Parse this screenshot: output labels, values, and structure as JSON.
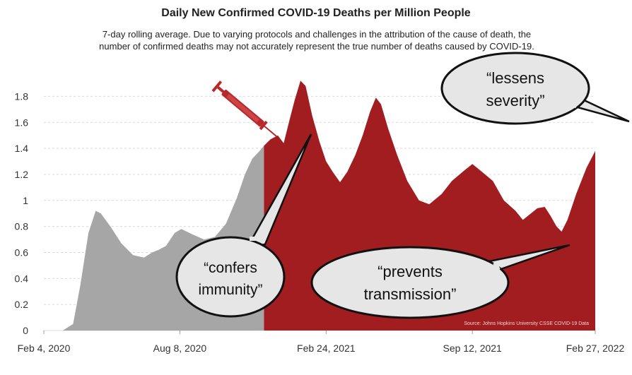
{
  "chart_data": {
    "type": "area",
    "title": "Daily New Confirmed COVID-19 Deaths per Million People",
    "subtitle_line1": "7-day rolling average. Due to varying protocols and challenges in the attribution of the cause of death, the",
    "subtitle_line2": "number of confirmed deaths may not accurately represent the true number of deaths caused by COVID-19.",
    "xlabel": "",
    "ylabel": "",
    "ylim": [
      0,
      1.9
    ],
    "yticks": [
      "0",
      "0.2",
      "0.4",
      "0.6",
      "0.8",
      "1",
      "1.2",
      "1.4",
      "1.6",
      "1.8"
    ],
    "xticks": [
      {
        "label": "Feb 4, 2020",
        "date": "2020-02-04"
      },
      {
        "label": "Aug 8, 2020",
        "date": "2020-08-08"
      },
      {
        "label": "Feb 24, 2021",
        "date": "2021-02-24"
      },
      {
        "label": "Sep 12, 2021",
        "date": "2021-09-12"
      },
      {
        "label": "Feb 27, 2022",
        "date": "2022-02-27"
      }
    ],
    "grid": true,
    "source": "Source: Johns Hopkins University CSSE COVID-19 Data",
    "series": [
      {
        "color": "#a6a6a6",
        "points": [
          [
            "2020-02-04",
            0.0
          ],
          [
            "2020-03-01",
            0.0
          ],
          [
            "2020-03-15",
            0.05
          ],
          [
            "2020-03-25",
            0.35
          ],
          [
            "2020-04-05",
            0.75
          ],
          [
            "2020-04-15",
            0.92
          ],
          [
            "2020-04-22",
            0.9
          ],
          [
            "2020-05-05",
            0.8
          ],
          [
            "2020-05-20",
            0.67
          ],
          [
            "2020-06-05",
            0.58
          ],
          [
            "2020-06-20",
            0.56
          ],
          [
            "2020-07-01",
            0.6
          ],
          [
            "2020-07-10",
            0.62
          ],
          [
            "2020-07-20",
            0.65
          ],
          [
            "2020-08-01",
            0.75
          ],
          [
            "2020-08-10",
            0.78
          ],
          [
            "2020-08-25",
            0.74
          ],
          [
            "2020-09-10",
            0.7
          ],
          [
            "2020-09-25",
            0.72
          ],
          [
            "2020-10-10",
            0.82
          ],
          [
            "2020-10-25",
            1.02
          ],
          [
            "2020-11-05",
            1.2
          ],
          [
            "2020-11-15",
            1.32
          ],
          [
            "2020-11-25",
            1.38
          ],
          [
            "2020-12-01",
            1.42
          ]
        ]
      },
      {
        "color": "#a11d1f",
        "points": [
          [
            "2020-12-01",
            1.42
          ],
          [
            "2020-12-10",
            1.47
          ],
          [
            "2020-12-20",
            1.5
          ],
          [
            "2020-12-28",
            1.44
          ],
          [
            "2021-01-05",
            1.62
          ],
          [
            "2021-01-12",
            1.77
          ],
          [
            "2021-01-20",
            1.92
          ],
          [
            "2021-01-27",
            1.88
          ],
          [
            "2021-02-05",
            1.65
          ],
          [
            "2021-02-15",
            1.45
          ],
          [
            "2021-02-24",
            1.3
          ],
          [
            "2021-03-05",
            1.22
          ],
          [
            "2021-03-15",
            1.14
          ],
          [
            "2021-03-25",
            1.22
          ],
          [
            "2021-04-05",
            1.35
          ],
          [
            "2021-04-15",
            1.5
          ],
          [
            "2021-04-25",
            1.68
          ],
          [
            "2021-05-03",
            1.79
          ],
          [
            "2021-05-10",
            1.74
          ],
          [
            "2021-05-20",
            1.55
          ],
          [
            "2021-06-01",
            1.35
          ],
          [
            "2021-06-15",
            1.15
          ],
          [
            "2021-07-01",
            1.0
          ],
          [
            "2021-07-15",
            0.97
          ],
          [
            "2021-08-01",
            1.05
          ],
          [
            "2021-08-15",
            1.15
          ],
          [
            "2021-09-01",
            1.23
          ],
          [
            "2021-09-12",
            1.28
          ],
          [
            "2021-09-25",
            1.22
          ],
          [
            "2021-10-10",
            1.15
          ],
          [
            "2021-10-25",
            1.0
          ],
          [
            "2021-11-10",
            0.92
          ],
          [
            "2021-11-20",
            0.85
          ],
          [
            "2021-12-01",
            0.9
          ],
          [
            "2021-12-10",
            0.94
          ],
          [
            "2021-12-20",
            0.95
          ],
          [
            "2021-12-28",
            0.88
          ],
          [
            "2022-01-05",
            0.8
          ],
          [
            "2022-01-12",
            0.76
          ],
          [
            "2022-01-20",
            0.85
          ],
          [
            "2022-02-01",
            1.05
          ],
          [
            "2022-02-15",
            1.25
          ],
          [
            "2022-02-27",
            1.38
          ]
        ]
      }
    ],
    "annotations": {
      "severity": "“lessens\nseverity”",
      "immunity": "“confers\nimmunity”",
      "transmission": "“prevents\ntransmission”"
    }
  }
}
